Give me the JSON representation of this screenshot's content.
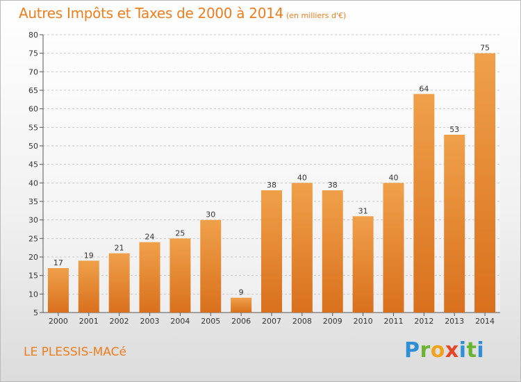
{
  "chart_data": {
    "type": "bar",
    "title": "Autres Impôts et Taxes de 2000 à 2014",
    "subtitle": "(en milliers d'€)",
    "xlabel": "",
    "ylabel": "",
    "categories": [
      "2000",
      "2001",
      "2002",
      "2003",
      "2004",
      "2005",
      "2006",
      "2007",
      "2008",
      "2009",
      "2010",
      "2011",
      "2012",
      "2013",
      "2014"
    ],
    "values": [
      17,
      19,
      21,
      24,
      25,
      30,
      9,
      38,
      40,
      38,
      31,
      40,
      64,
      53,
      75
    ],
    "ylim": [
      5,
      80
    ],
    "yticks": [
      5,
      10,
      15,
      20,
      25,
      30,
      35,
      40,
      45,
      50,
      55,
      60,
      65,
      70,
      75,
      80
    ],
    "grid": true,
    "bar_color": "#f0a04a",
    "bar_color_dark": "#d9701d"
  },
  "footer": {
    "commune": "LE PLESSIS-MACé",
    "brand": [
      "P",
      "r",
      "o",
      "x",
      "i",
      "t",
      "i"
    ]
  }
}
